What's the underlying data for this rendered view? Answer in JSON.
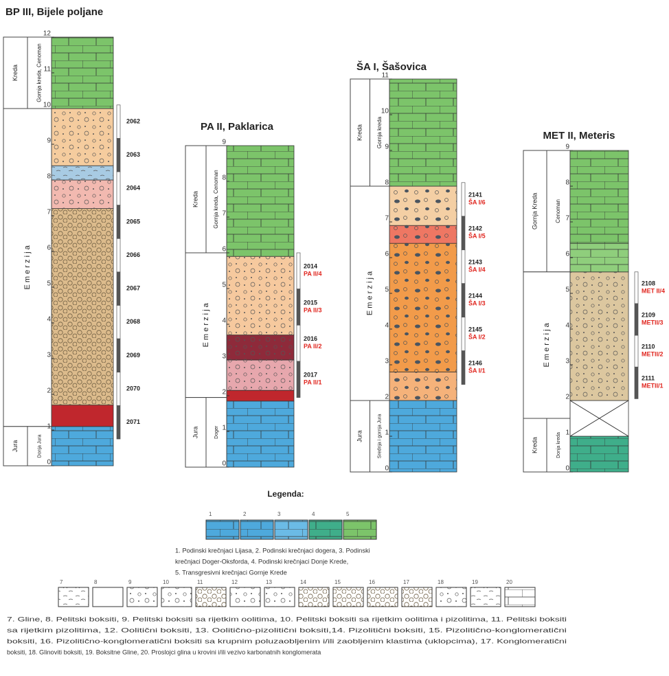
{
  "columns": [
    {
      "title": "BP III, Bijele poljane",
      "boxes": [
        "Kreda",
        "Gornja kreda, Cenoman",
        "E m e r z i j a",
        "Jura",
        "Donja Jura"
      ],
      "scale": [
        0,
        1,
        2,
        3,
        4,
        5,
        6,
        7,
        8,
        9,
        10,
        11,
        12
      ],
      "samples": [
        {
          "code": "2062"
        },
        {
          "code": "2063"
        },
        {
          "code": "2064"
        },
        {
          "code": "2065"
        },
        {
          "code": "2066"
        },
        {
          "code": "2067"
        },
        {
          "code": "2068"
        },
        {
          "code": "2069"
        },
        {
          "code": "2070"
        },
        {
          "code": "2071"
        }
      ]
    },
    {
      "title": "PA II, Paklarica",
      "boxes": [
        "Kreda",
        "Gornja kreda, Cenoman",
        "E m e r z i j a",
        "Jura",
        "Doger"
      ],
      "scale": [
        0,
        1,
        2,
        3,
        4,
        5,
        6,
        7,
        8,
        9
      ],
      "samples": [
        {
          "code": "2014",
          "label": "PA II/4"
        },
        {
          "code": "2015",
          "label": "PA II/3"
        },
        {
          "code": "2016",
          "label": "PA II/2"
        },
        {
          "code": "2017",
          "label": "PA II/1"
        }
      ]
    },
    {
      "title": "ŠA I, Šašovica",
      "boxes": [
        "Kreda",
        "Gornja kreda",
        "E m e r z i j a",
        "Jura",
        "Srednja i gornja Jura"
      ],
      "scale": [
        0,
        1,
        2,
        3,
        4,
        5,
        6,
        7,
        8,
        9,
        10,
        11
      ],
      "samples": [
        {
          "code": "2141",
          "label": "ŠA I/6"
        },
        {
          "code": "2142",
          "label": "ŠA I/5"
        },
        {
          "code": "2143",
          "label": "ŠA I/4"
        },
        {
          "code": "2144",
          "label": "ŠA I/3"
        },
        {
          "code": "2145",
          "label": "ŠA I/2"
        },
        {
          "code": "2146",
          "label": "ŠA I/1"
        }
      ]
    },
    {
      "title": "MET II, Meteris",
      "boxes": [
        "Gornja Kreda",
        "Cenoman",
        "E m e r z i j a",
        "Kreda",
        "Donja kreda"
      ],
      "scale": [
        0,
        1,
        2,
        3,
        4,
        5,
        6,
        7,
        8,
        9
      ],
      "samples": [
        {
          "code": "2108",
          "label": "MET II/4"
        },
        {
          "code": "2109",
          "label": "METII/3"
        },
        {
          "code": "2110",
          "label": "METII/2"
        },
        {
          "code": "2111",
          "label": "METII/1"
        }
      ]
    }
  ],
  "legend": {
    "title": "Legenda:",
    "limestones": [
      1,
      2,
      3,
      4,
      5
    ],
    "limestone_caption": [
      "1. Podinski krečnjaci Lijasa, 2. Podinski krečnjaci dogera, 3. Podinski",
      "krečnjaci Doger-Oksforda, 4. Podinski krečnjaci Donje Krede,",
      "5. Transgresivni krečnjaci Gornje Krede"
    ],
    "bauxites": [
      7,
      8,
      9,
      10,
      11,
      12,
      13,
      14,
      15,
      16,
      17,
      18,
      19,
      20
    ],
    "bauxite_caption": [
      "7. Gline, 8. Pelitski boksiti, 9. Pelitski boksiti sa rijetkim oolitima, 10. Pelitski boksiti sa rijetkim oolitima i pizolitima, 11. Pelitski boksiti",
      "sa rijetkim pizolitima, 12. Oolitični boksiti, 13. Oolitično-pizolitični boksiti,14. Pizolitični boksiti, 15. Pizolitično-konglomeratični",
      "boksiti, 16. Pizolitično-konglomeratični boksiti sa krupnim poluzaobljenim i/ili zaobljenim klastima (uklopcima), 17. Konglomeratični",
      "boksiti, 18. Glinoviti boksiti, 19. Boksitne Gline, 20. Proslojci glina u krovini i/ili vezivo karbonatnih konglomerata"
    ]
  }
}
